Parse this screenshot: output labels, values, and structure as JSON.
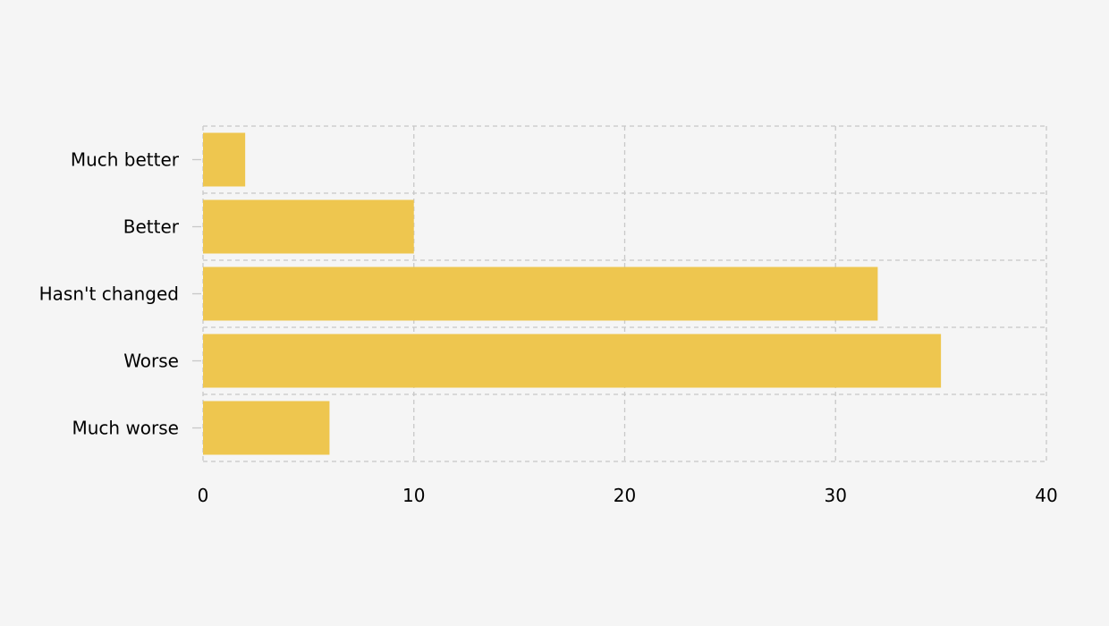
{
  "colors": {
    "background": "#f5f5f5",
    "bar": "#eec64f",
    "grid": "#c8c8c8",
    "tick_mark": "#c8c8c8",
    "text": "#000000"
  },
  "chart_data": {
    "type": "bar",
    "orientation": "horizontal",
    "categories": [
      "Much better",
      "Better",
      "Hasn't changed",
      "Worse",
      "Much worse"
    ],
    "values": [
      2,
      10,
      32,
      35,
      6
    ],
    "xlim": [
      0,
      40
    ],
    "xticks": [
      0,
      10,
      20,
      30,
      40
    ],
    "grid": true,
    "grid_style": "dashed",
    "legend": "none"
  }
}
